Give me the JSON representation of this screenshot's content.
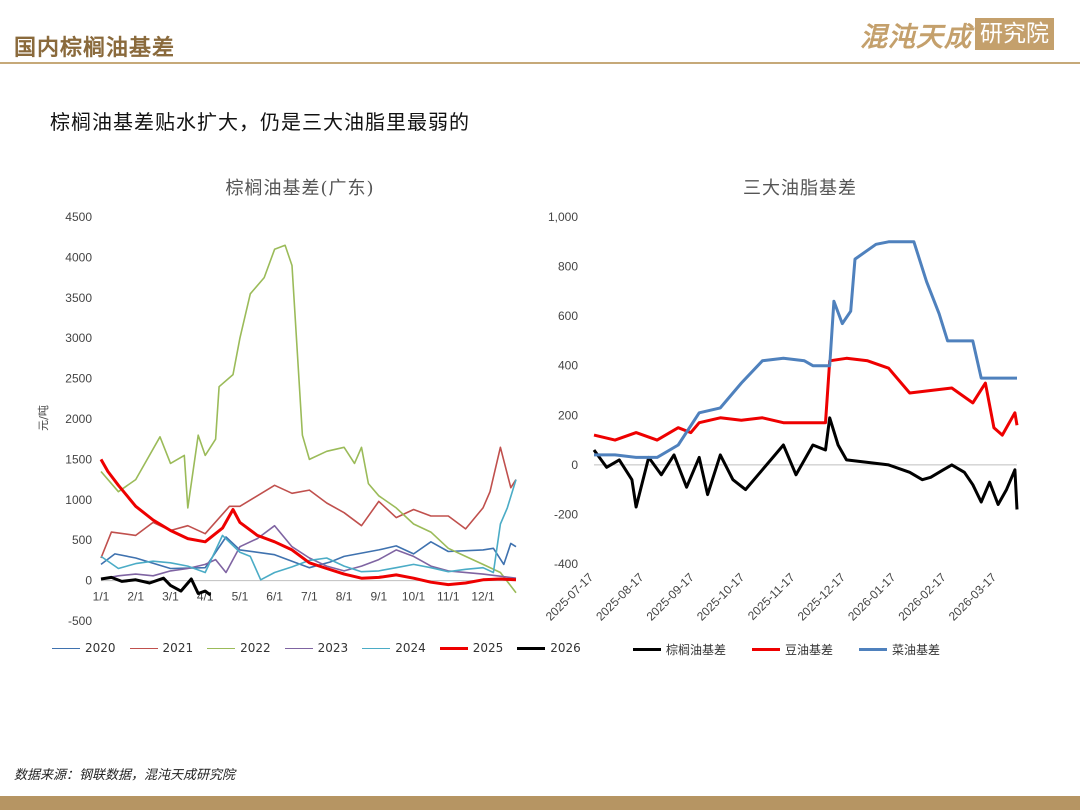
{
  "header": {
    "title": "国内棕榈油基差",
    "logo_text": "混沌天成",
    "logo_box_text": "研究院"
  },
  "headline": "棕榈油基差贴水扩大，仍是三大油脂里最弱的",
  "source": "数据来源：钢联数据，混沌天成研究院",
  "chart_data": [
    {
      "type": "line",
      "title": "棕榈油基差(广东)",
      "ylabel": "元/吨",
      "ylim": [
        -500,
        4500
      ],
      "yticks": [
        "4500",
        "4000",
        "3500",
        "3000",
        "2500",
        "2000",
        "1500",
        "1000",
        "500",
        "0",
        "-500"
      ],
      "xticks": [
        "1/1",
        "2/1",
        "3/1",
        "4/1",
        "5/1",
        "6/1",
        "7/1",
        "8/1",
        "9/1",
        "10/1",
        "11/1",
        "12/1"
      ],
      "legend_position": "bottom",
      "series": [
        {
          "name": "2020",
          "color": "#3f72af",
          "points": [
            [
              1,
              200
            ],
            [
              1.4,
              330
            ],
            [
              2,
              280
            ],
            [
              3,
              150
            ],
            [
              4,
              160
            ],
            [
              4.6,
              540
            ],
            [
              5,
              380
            ],
            [
              6,
              320
            ],
            [
              6.5,
              240
            ],
            [
              7,
              160
            ],
            [
              7.6,
              230
            ],
            [
              8,
              300
            ],
            [
              9,
              380
            ],
            [
              9.5,
              430
            ],
            [
              10,
              330
            ],
            [
              10.5,
              480
            ],
            [
              11,
              360
            ],
            [
              12,
              380
            ],
            [
              12.3,
              400
            ],
            [
              12.6,
              200
            ],
            [
              12.8,
              460
            ],
            [
              12.95,
              420
            ]
          ]
        },
        {
          "name": "2021",
          "color": "#c0504d",
          "points": [
            [
              1,
              280
            ],
            [
              1.3,
              600
            ],
            [
              2,
              560
            ],
            [
              2.5,
              720
            ],
            [
              3,
              620
            ],
            [
              3.5,
              680
            ],
            [
              4,
              580
            ],
            [
              4.7,
              920
            ],
            [
              5,
              920
            ],
            [
              5.5,
              1050
            ],
            [
              6,
              1180
            ],
            [
              6.5,
              1080
            ],
            [
              7,
              1120
            ],
            [
              7.5,
              960
            ],
            [
              8,
              840
            ],
            [
              8.5,
              680
            ],
            [
              9,
              980
            ],
            [
              9.5,
              780
            ],
            [
              10,
              880
            ],
            [
              10.5,
              800
            ],
            [
              11,
              800
            ],
            [
              11.5,
              640
            ],
            [
              12,
              900
            ],
            [
              12.2,
              1100
            ],
            [
              12.5,
              1650
            ],
            [
              12.8,
              1150
            ],
            [
              12.95,
              1250
            ]
          ]
        },
        {
          "name": "2022",
          "color": "#9bbb59",
          "points": [
            [
              1,
              1350
            ],
            [
              1.5,
              1100
            ],
            [
              2,
              1250
            ],
            [
              2.7,
              1780
            ],
            [
              3,
              1450
            ],
            [
              3.4,
              1550
            ],
            [
              3.5,
              900
            ],
            [
              3.8,
              1800
            ],
            [
              4,
              1550
            ],
            [
              4.3,
              1750
            ],
            [
              4.4,
              2400
            ],
            [
              4.8,
              2550
            ],
            [
              5,
              3000
            ],
            [
              5.3,
              3550
            ],
            [
              5.7,
              3750
            ],
            [
              6,
              4100
            ],
            [
              6.3,
              4150
            ],
            [
              6.5,
              3900
            ],
            [
              6.8,
              1800
            ],
            [
              7,
              1500
            ],
            [
              7.5,
              1600
            ],
            [
              8,
              1650
            ],
            [
              8.3,
              1450
            ],
            [
              8.5,
              1650
            ],
            [
              8.7,
              1200
            ],
            [
              9,
              1050
            ],
            [
              9.5,
              900
            ],
            [
              10,
              700
            ],
            [
              10.5,
              600
            ],
            [
              11,
              400
            ],
            [
              11.5,
              300
            ],
            [
              12,
              200
            ],
            [
              12.5,
              100
            ],
            [
              12.95,
              -150
            ]
          ]
        },
        {
          "name": "2023",
          "color": "#7f64a2",
          "points": [
            [
              1,
              20
            ],
            [
              1.5,
              60
            ],
            [
              2,
              80
            ],
            [
              2.5,
              60
            ],
            [
              3,
              120
            ],
            [
              3.5,
              150
            ],
            [
              4,
              200
            ],
            [
              4.3,
              260
            ],
            [
              4.6,
              100
            ],
            [
              5,
              420
            ],
            [
              5.5,
              520
            ],
            [
              6,
              680
            ],
            [
              6.5,
              420
            ],
            [
              7,
              280
            ],
            [
              7.5,
              180
            ],
            [
              8,
              120
            ],
            [
              8.5,
              180
            ],
            [
              9,
              260
            ],
            [
              9.5,
              380
            ],
            [
              10,
              300
            ],
            [
              10.5,
              180
            ],
            [
              11,
              120
            ],
            [
              12,
              80
            ],
            [
              12.95,
              30
            ]
          ]
        },
        {
          "name": "2024",
          "color": "#4bacc6",
          "points": [
            [
              1,
              300
            ],
            [
              1.5,
              150
            ],
            [
              2,
              210
            ],
            [
              2.5,
              240
            ],
            [
              3,
              220
            ],
            [
              3.5,
              180
            ],
            [
              4,
              100
            ],
            [
              4.5,
              560
            ],
            [
              5,
              350
            ],
            [
              5.3,
              300
            ],
            [
              5.6,
              10
            ],
            [
              6,
              100
            ],
            [
              6.5,
              170
            ],
            [
              7,
              250
            ],
            [
              7.5,
              280
            ],
            [
              8,
              180
            ],
            [
              8.5,
              110
            ],
            [
              9,
              120
            ],
            [
              9.5,
              160
            ],
            [
              10,
              200
            ],
            [
              10.5,
              160
            ],
            [
              11,
              110
            ],
            [
              11.5,
              140
            ],
            [
              12,
              160
            ],
            [
              12.3,
              100
            ],
            [
              12.5,
              700
            ],
            [
              12.7,
              900
            ],
            [
              12.95,
              1250
            ]
          ]
        },
        {
          "name": "2025",
          "color": "#ee0000",
          "width": 3,
          "points": [
            [
              1,
              1500
            ],
            [
              1.2,
              1350
            ],
            [
              1.5,
              1180
            ],
            [
              2,
              920
            ],
            [
              2.5,
              750
            ],
            [
              3,
              620
            ],
            [
              3.5,
              520
            ],
            [
              4,
              480
            ],
            [
              4.5,
              650
            ],
            [
              4.8,
              880
            ],
            [
              5,
              720
            ],
            [
              5.5,
              560
            ],
            [
              6,
              480
            ],
            [
              6.5,
              380
            ],
            [
              7,
              220
            ],
            [
              7.5,
              150
            ],
            [
              8,
              80
            ],
            [
              8.5,
              30
            ],
            [
              9,
              40
            ],
            [
              9.5,
              70
            ],
            [
              10,
              30
            ],
            [
              10.5,
              -20
            ],
            [
              11,
              -50
            ],
            [
              11.5,
              -30
            ],
            [
              12,
              10
            ],
            [
              12.5,
              20
            ],
            [
              12.95,
              10
            ]
          ]
        },
        {
          "name": "2026",
          "color": "#000000",
          "width": 3,
          "points": [
            [
              1,
              20
            ],
            [
              1.3,
              40
            ],
            [
              1.6,
              -10
            ],
            [
              2,
              10
            ],
            [
              2.4,
              -30
            ],
            [
              2.8,
              30
            ],
            [
              3,
              -60
            ],
            [
              3.3,
              -130
            ],
            [
              3.6,
              20
            ],
            [
              3.8,
              -160
            ],
            [
              4,
              -130
            ],
            [
              4.15,
              -180
            ]
          ]
        }
      ]
    },
    {
      "type": "line",
      "title": "三大油脂基差",
      "ylim": [
        -400,
        1000
      ],
      "yticks": [
        "1,000",
        "800",
        "600",
        "400",
        "200",
        "0",
        "-200",
        "-400"
      ],
      "xticks": [
        "2025-07-17",
        "2025-08-17",
        "2025-09-17",
        "2025-10-17",
        "2025-11-17",
        "2025-12-17",
        "2026-01-17",
        "2026-02-17",
        "2026-03-17"
      ],
      "legend_position": "bottom",
      "series": [
        {
          "name": "棕榈油基差",
          "color": "#000000",
          "width": 3,
          "points": [
            [
              0,
              60
            ],
            [
              0.3,
              -10
            ],
            [
              0.6,
              20
            ],
            [
              0.9,
              -60
            ],
            [
              1,
              -170
            ],
            [
              1.3,
              30
            ],
            [
              1.6,
              -40
            ],
            [
              1.9,
              40
            ],
            [
              2.2,
              -90
            ],
            [
              2.5,
              30
            ],
            [
              2.7,
              -120
            ],
            [
              3,
              40
            ],
            [
              3.3,
              -60
            ],
            [
              3.6,
              -100
            ],
            [
              3.9,
              -40
            ],
            [
              4.2,
              20
            ],
            [
              4.5,
              80
            ],
            [
              4.8,
              -40
            ],
            [
              5.2,
              80
            ],
            [
              5.5,
              60
            ],
            [
              5.6,
              190
            ],
            [
              5.8,
              80
            ],
            [
              6,
              20
            ],
            [
              6.5,
              10
            ],
            [
              7,
              0
            ],
            [
              7.5,
              -30
            ],
            [
              7.8,
              -60
            ],
            [
              8,
              -50
            ],
            [
              8.3,
              -20
            ],
            [
              8.5,
              0
            ],
            [
              8.8,
              -30
            ],
            [
              9,
              -80
            ],
            [
              9.2,
              -150
            ],
            [
              9.4,
              -70
            ],
            [
              9.6,
              -160
            ],
            [
              9.8,
              -100
            ],
            [
              10,
              -20
            ],
            [
              10.05,
              -180
            ]
          ]
        },
        {
          "name": "豆油基差",
          "color": "#ee0000",
          "width": 3,
          "points": [
            [
              0,
              120
            ],
            [
              0.5,
              100
            ],
            [
              1,
              130
            ],
            [
              1.5,
              100
            ],
            [
              2,
              150
            ],
            [
              2.3,
              130
            ],
            [
              2.5,
              170
            ],
            [
              3,
              190
            ],
            [
              3.5,
              180
            ],
            [
              4,
              190
            ],
            [
              4.5,
              170
            ],
            [
              5,
              170
            ],
            [
              5.5,
              170
            ],
            [
              5.6,
              420
            ],
            [
              6,
              430
            ],
            [
              6.5,
              420
            ],
            [
              7,
              390
            ],
            [
              7.5,
              290
            ],
            [
              8,
              300
            ],
            [
              8.5,
              310
            ],
            [
              9,
              250
            ],
            [
              9.3,
              330
            ],
            [
              9.5,
              150
            ],
            [
              9.7,
              120
            ],
            [
              9.9,
              180
            ],
            [
              10,
              210
            ],
            [
              10.05,
              160
            ]
          ]
        },
        {
          "name": "菜油基差",
          "color": "#4f81bd",
          "width": 3,
          "points": [
            [
              0,
              40
            ],
            [
              0.5,
              40
            ],
            [
              1,
              30
            ],
            [
              1.5,
              30
            ],
            [
              2,
              80
            ],
            [
              2.5,
              210
            ],
            [
              3,
              230
            ],
            [
              3.5,
              330
            ],
            [
              4,
              420
            ],
            [
              4.5,
              430
            ],
            [
              5,
              420
            ],
            [
              5.2,
              400
            ],
            [
              5.6,
              400
            ],
            [
              5.7,
              660
            ],
            [
              5.9,
              570
            ],
            [
              6.1,
              620
            ],
            [
              6.2,
              830
            ],
            [
              6.7,
              890
            ],
            [
              7,
              900
            ],
            [
              7.6,
              900
            ],
            [
              7.9,
              740
            ],
            [
              8.2,
              610
            ],
            [
              8.4,
              500
            ],
            [
              9,
              500
            ],
            [
              9.2,
              350
            ],
            [
              10,
              350
            ],
            [
              10.05,
              350
            ]
          ]
        }
      ]
    }
  ]
}
